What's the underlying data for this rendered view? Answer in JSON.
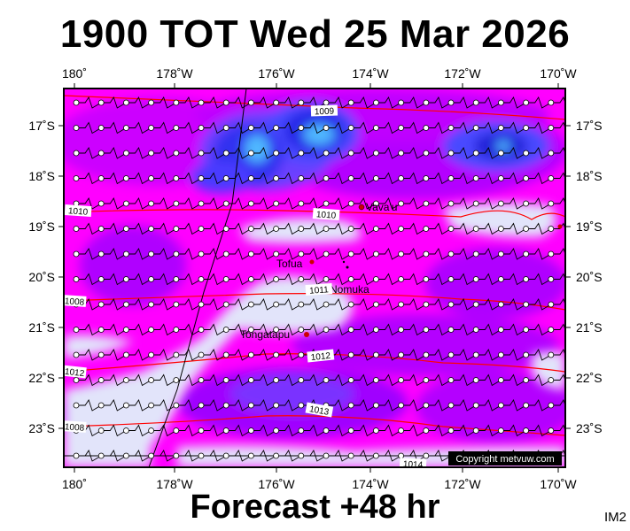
{
  "title": "1900 TOT Wed 25 Mar 2026",
  "footer": "Forecast +48 hr",
  "image_tag": "IM2",
  "copyright": "Copyright metvuw.com",
  "colors": {
    "background_low": "#e0e2f8",
    "magenta": "#ff00ff",
    "violet": "#cc00ff",
    "purple": "#8a00ff",
    "blue": "#3a3aff",
    "deep_blue": "#1818e0",
    "light_blue": "#4aa8ff",
    "isobar": "#ff0000",
    "dateline": "#000000"
  },
  "longitude_labels": [
    "180˚",
    "178˚W",
    "176˚W",
    "174˚W",
    "172˚W",
    "170˚W"
  ],
  "latitude_labels": [
    "17˚S",
    "18˚S",
    "19˚S",
    "20˚S",
    "21˚S",
    "22˚S",
    "23˚S"
  ],
  "isobar_labels": [
    "1009",
    "1010",
    "1010",
    "1011",
    "1012",
    "1012",
    "1013",
    "1014",
    "1008",
    "1008"
  ],
  "places": [
    "Vava'u",
    "Tofua",
    "Nomuka",
    "Tongatapu"
  ]
}
